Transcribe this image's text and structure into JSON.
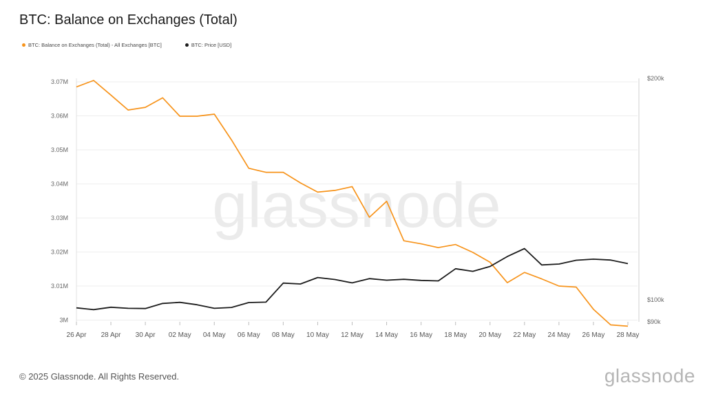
{
  "chart_data": {
    "type": "line",
    "title": "BTC: Balance on Exchanges (Total)",
    "watermark": "glassnode",
    "grid": true,
    "x_tick_labels": [
      "26 Apr",
      "28 Apr",
      "30 Apr",
      "02 May",
      "04 May",
      "06 May",
      "08 May",
      "10 May",
      "12 May",
      "14 May",
      "16 May",
      "18 May",
      "20 May",
      "22 May",
      "24 May",
      "26 May",
      "28 May"
    ],
    "left_axis": {
      "range": [
        2999500,
        3071000
      ],
      "ticks": [
        3000000,
        3010000,
        3020000,
        3030000,
        3040000,
        3050000,
        3060000,
        3070000
      ],
      "tick_labels": [
        "3M",
        "3.01M",
        "3.02M",
        "3.03M",
        "3.04M",
        "3.05M",
        "3.06M",
        "3.07M"
      ]
    },
    "right_axis": {
      "range": [
        90000,
        200000
      ],
      "ticks": [
        90000,
        100000,
        200000
      ],
      "tick_labels": [
        "$90k",
        "$100k",
        "$200k"
      ]
    },
    "series": [
      {
        "name": "BTC: Balance on Exchanges (Total) - All Exchanges [BTC]",
        "axis": "left",
        "color": "#f7931a",
        "values": [
          3068500,
          3070400,
          3066100,
          3061700,
          3062500,
          3065300,
          3059900,
          3059900,
          3060500,
          3052900,
          3044600,
          3043400,
          3043400,
          3040300,
          3037600,
          3038100,
          3039200,
          3030200,
          3034900,
          3023300,
          3022400,
          3021300,
          3022200,
          3019900,
          3017000,
          3011000,
          3014000,
          3012100,
          3010000,
          3009700,
          3003200,
          2998600,
          2998200
        ]
      },
      {
        "name": "BTC: Price [USD]",
        "axis": "right",
        "color": "#1a1a1a",
        "values": [
          96300,
          95500,
          96600,
          96100,
          96000,
          98300,
          98800,
          97700,
          96100,
          96500,
          98700,
          98900,
          107500,
          107100,
          110000,
          109100,
          107600,
          109500,
          108800,
          109200,
          108700,
          108500,
          114000,
          112800,
          115000,
          119500,
          123100,
          115700,
          116100,
          117800,
          118300,
          117900,
          116300
        ]
      }
    ],
    "legend": {
      "placement": "top-left"
    }
  },
  "footer": {
    "copyright": "© 2025 Glassnode. All Rights Reserved.",
    "brand": "glassnode"
  }
}
